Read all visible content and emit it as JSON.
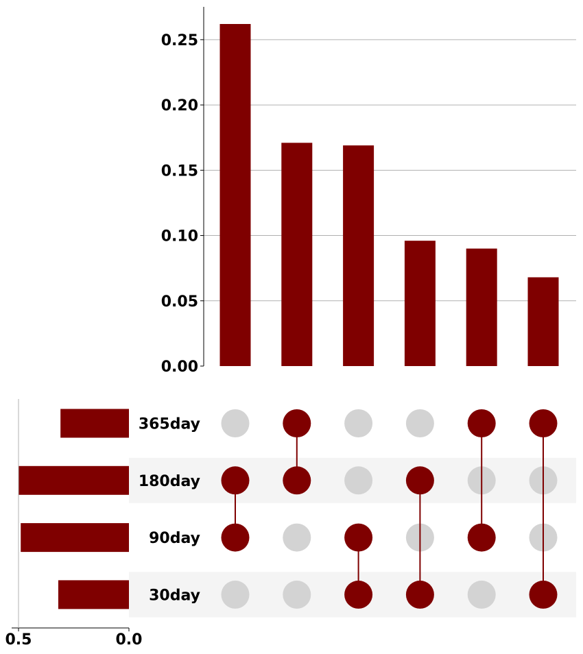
{
  "chart_data": {
    "type": "bar",
    "subtype": "upset",
    "title": "",
    "colors": {
      "bar": "#7f0000",
      "dot_active": "#7f0000",
      "dot_inactive": "#d3d3d3",
      "stripe": "#f4f4f4",
      "grid": "#b0b0b0",
      "axis": "#000000"
    },
    "sets": [
      "365day",
      "180day",
      "90day",
      "30day"
    ],
    "set_sizes": [
      0.31,
      0.5,
      0.49,
      0.32
    ],
    "set_size_axis": {
      "ticks": [
        0.5,
        0.0
      ],
      "tick_labels": [
        "0.5",
        "0.0"
      ]
    },
    "intersections": [
      {
        "members": [
          "180day",
          "90day"
        ],
        "value": 0.262
      },
      {
        "members": [
          "365day",
          "180day"
        ],
        "value": 0.171
      },
      {
        "members": [
          "90day",
          "30day"
        ],
        "value": 0.169
      },
      {
        "members": [
          "180day",
          "30day"
        ],
        "value": 0.096
      },
      {
        "members": [
          "365day",
          "90day"
        ],
        "value": 0.09
      },
      {
        "members": [
          "365day",
          "30day"
        ],
        "value": 0.068
      }
    ],
    "intersection_axis": {
      "ylim": [
        0,
        0.275
      ],
      "ticks": [
        0,
        0.05,
        0.1,
        0.15,
        0.2,
        0.25
      ],
      "tick_labels": [
        "0.00",
        "0.05",
        "0.10",
        "0.15",
        "0.20",
        "0.25"
      ],
      "grid": true
    }
  }
}
